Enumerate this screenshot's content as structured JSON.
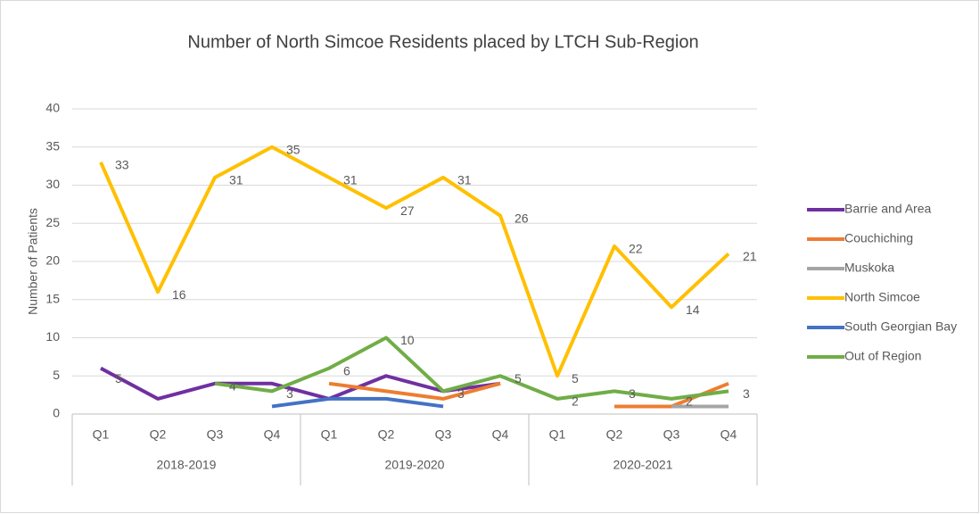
{
  "chart_data": {
    "type": "line",
    "title": "Number of North Simcoe Residents placed by LTCH Sub-Region",
    "y_label": "Number of Patients",
    "categories": [
      "Q1",
      "Q2",
      "Q3",
      "Q4",
      "Q1",
      "Q2",
      "Q3",
      "Q4",
      "Q1",
      "Q2",
      "Q3",
      "Q4"
    ],
    "groups": [
      {
        "name": "2018-2019",
        "size": 4
      },
      {
        "name": "2019-2020",
        "size": 4
      },
      {
        "name": "2020-2021",
        "size": 4
      }
    ],
    "ylim": [
      0,
      40
    ],
    "yticks": [
      0,
      5,
      10,
      15,
      20,
      25,
      30,
      35,
      40
    ],
    "grid": true,
    "legend": "right",
    "series": [
      {
        "name": "Barrie and Area",
        "color": "#7030a0",
        "values": [
          6,
          2,
          4,
          4,
          2,
          5,
          3,
          4,
          null,
          null,
          null,
          null
        ]
      },
      {
        "name": "Couchiching",
        "color": "#ed7d31",
        "values": [
          null,
          null,
          null,
          null,
          4,
          3,
          2,
          4,
          null,
          1,
          1,
          4
        ]
      },
      {
        "name": "Muskoka",
        "color": "#a5a5a5",
        "values": [
          null,
          null,
          null,
          null,
          null,
          null,
          null,
          null,
          null,
          null,
          1,
          1
        ]
      },
      {
        "name": "North Simcoe",
        "color": "#ffc000",
        "values": [
          33,
          16,
          31,
          35,
          31,
          27,
          31,
          26,
          5,
          22,
          14,
          21
        ],
        "data_labels": true
      },
      {
        "name": "South Georgian Bay",
        "color": "#4472c4",
        "values": [
          null,
          null,
          null,
          1,
          2,
          2,
          1,
          null,
          null,
          null,
          null,
          null
        ]
      },
      {
        "name": "Out of Region",
        "color": "#70ad47",
        "values": [
          5,
          null,
          4,
          3,
          6,
          10,
          3,
          5,
          2,
          3,
          2,
          3
        ],
        "data_labels": true
      }
    ]
  }
}
